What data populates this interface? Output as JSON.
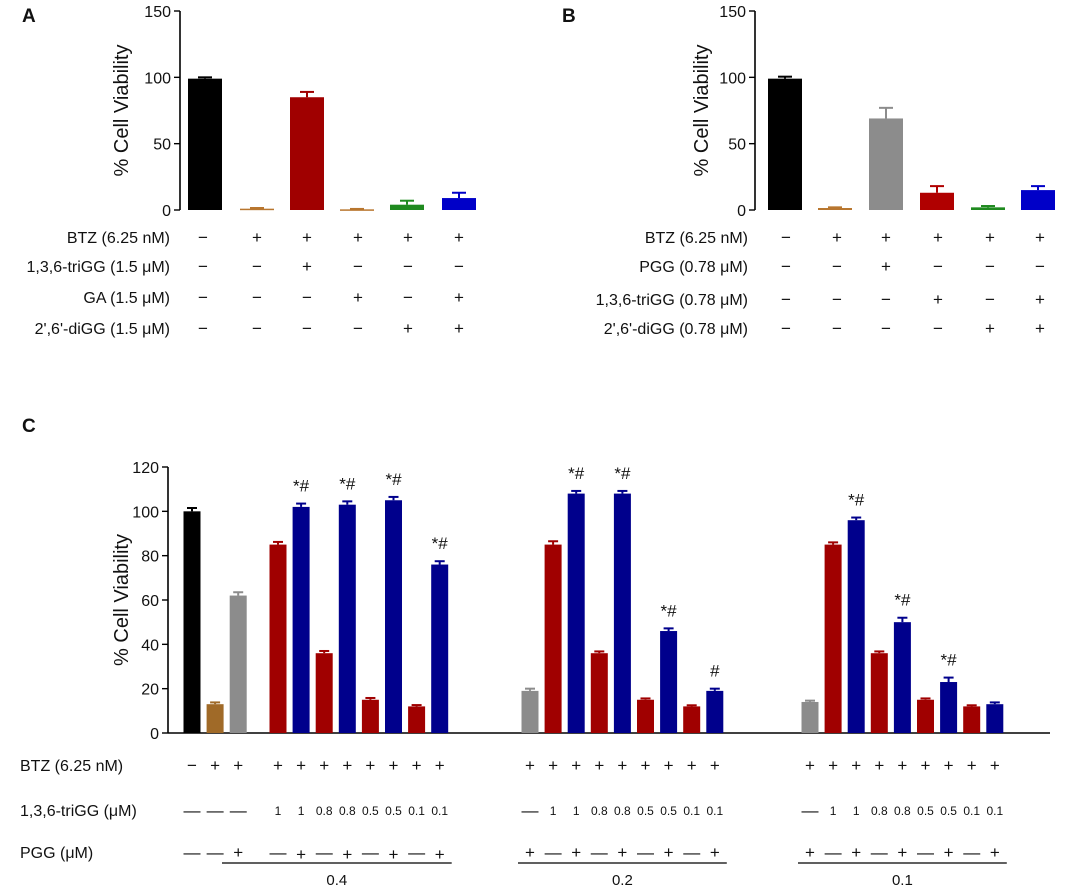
{
  "chart_data": [
    {
      "panel": "A",
      "type": "bar",
      "ylabel": "% Cell Viability",
      "ylim": [
        0,
        150
      ],
      "yticks": [
        0,
        50,
        100,
        150
      ],
      "values": [
        99,
        1,
        85,
        0.5,
        4,
        9
      ],
      "errors": [
        1,
        0.5,
        4,
        0.3,
        3,
        4
      ],
      "colors": [
        "#000000",
        "#b8762f",
        "#a00000",
        "#b8762f",
        "#1f8a1f",
        "#0000c8"
      ],
      "rows": [
        {
          "label": "BTZ (6.25 nM)",
          "cells": [
            "−",
            "+",
            "+",
            "+",
            "+",
            "+"
          ]
        },
        {
          "label": "1,3,6-triGG (1.5 μM)",
          "cells": [
            "−",
            "−",
            "+",
            "−",
            "−",
            "−"
          ]
        },
        {
          "label": "GA (1.5 μM)",
          "cells": [
            "−",
            "−",
            "−",
            "+",
            "−",
            "+"
          ]
        },
        {
          "label": "2',6'-diGG (1.5 μM)",
          "cells": [
            "−",
            "−",
            "−",
            "−",
            "+",
            "+"
          ]
        }
      ]
    },
    {
      "panel": "B",
      "type": "bar",
      "ylabel": "% Cell Viability",
      "ylim": [
        0,
        150
      ],
      "yticks": [
        0,
        50,
        100,
        150
      ],
      "values": [
        99,
        1.5,
        69,
        13,
        2,
        15
      ],
      "errors": [
        1.5,
        0.5,
        8,
        5,
        1,
        3
      ],
      "colors": [
        "#000000",
        "#b8762f",
        "#8c8c8c",
        "#b00000",
        "#1f8a1f",
        "#0000c8"
      ],
      "rows": [
        {
          "label": "BTZ (6.25 nM)",
          "cells": [
            "−",
            "+",
            "+",
            "+",
            "+",
            "+"
          ]
        },
        {
          "label": "PGG (0.78 μM)",
          "cells": [
            "−",
            "−",
            "+",
            "−",
            "−",
            "−"
          ]
        },
        {
          "label": "1,3,6-triGG (0.78 μM)",
          "cells": [
            "−",
            "−",
            "−",
            "+",
            "−",
            "+"
          ]
        },
        {
          "label": "2',6'-diGG (0.78 μM)",
          "cells": [
            "−",
            "−",
            "−",
            "−",
            "+",
            "+"
          ]
        }
      ]
    },
    {
      "panel": "C",
      "type": "bar",
      "ylabel": "% Cell Viability",
      "ylim": [
        0,
        120
      ],
      "yticks": [
        0,
        20,
        40,
        60,
        80,
        100,
        120
      ],
      "groups": [
        {
          "label": "",
          "bars": [
            {
              "value": 100,
              "error": 1.5,
              "color": "#000000",
              "sig": "",
              "btz": "−",
              "trigg": "—",
              "pgg": "—"
            },
            {
              "value": 13,
              "error": 0.8,
              "color": "#a06a28",
              "sig": "",
              "btz": "+",
              "trigg": "—",
              "pgg": "—"
            },
            {
              "value": 62,
              "error": 1.5,
              "color": "#8c8c8c",
              "sig": "",
              "btz": "+",
              "trigg": "—",
              "pgg": "+"
            }
          ]
        },
        {
          "label": "0.4",
          "bars": [
            {
              "value": 85,
              "error": 1.2,
              "color": "#a00000",
              "sig": "",
              "btz": "+",
              "trigg": "1",
              "pgg": "—"
            },
            {
              "value": 102,
              "error": 1.5,
              "color": "#00008c",
              "sig": "*#",
              "btz": "+",
              "trigg": "1",
              "pgg": "+"
            },
            {
              "value": 36,
              "error": 1,
              "color": "#a00000",
              "sig": "",
              "btz": "+",
              "trigg": "0.8",
              "pgg": "—"
            },
            {
              "value": 103,
              "error": 1.5,
              "color": "#00008c",
              "sig": "*#",
              "btz": "+",
              "trigg": "0.8",
              "pgg": "+"
            },
            {
              "value": 15,
              "error": 0.8,
              "color": "#a00000",
              "sig": "",
              "btz": "+",
              "trigg": "0.5",
              "pgg": "—"
            },
            {
              "value": 105,
              "error": 1.5,
              "color": "#00008c",
              "sig": "*#",
              "btz": "+",
              "trigg": "0.5",
              "pgg": "+"
            },
            {
              "value": 12,
              "error": 0.6,
              "color": "#a00000",
              "sig": "",
              "btz": "+",
              "trigg": "0.1",
              "pgg": "—"
            },
            {
              "value": 76,
              "error": 1.5,
              "color": "#00008c",
              "sig": "*#",
              "btz": "+",
              "trigg": "0.1",
              "pgg": "+"
            }
          ]
        },
        {
          "label": "0.2",
          "bars": [
            {
              "value": 19,
              "error": 1,
              "color": "#8c8c8c",
              "sig": "",
              "btz": "+",
              "trigg": "—",
              "pgg": "+"
            },
            {
              "value": 85,
              "error": 1.5,
              "color": "#a00000",
              "sig": "",
              "btz": "+",
              "trigg": "1",
              "pgg": "—"
            },
            {
              "value": 108,
              "error": 1.2,
              "color": "#00008c",
              "sig": "*#",
              "btz": "+",
              "trigg": "1",
              "pgg": "+"
            },
            {
              "value": 36,
              "error": 0.8,
              "color": "#a00000",
              "sig": "",
              "btz": "+",
              "trigg": "0.8",
              "pgg": "—"
            },
            {
              "value": 108,
              "error": 1.2,
              "color": "#00008c",
              "sig": "*#",
              "btz": "+",
              "trigg": "0.8",
              "pgg": "+"
            },
            {
              "value": 15,
              "error": 0.6,
              "color": "#a00000",
              "sig": "",
              "btz": "+",
              "trigg": "0.5",
              "pgg": "—"
            },
            {
              "value": 46,
              "error": 1.2,
              "color": "#00008c",
              "sig": "*#",
              "btz": "+",
              "trigg": "0.5",
              "pgg": "+"
            },
            {
              "value": 12,
              "error": 0.5,
              "color": "#a00000",
              "sig": "",
              "btz": "+",
              "trigg": "0.1",
              "pgg": "—"
            },
            {
              "value": 19,
              "error": 1,
              "color": "#00008c",
              "sig": "#",
              "btz": "+",
              "trigg": "0.1",
              "pgg": "+"
            }
          ]
        },
        {
          "label": "0.1",
          "bars": [
            {
              "value": 14,
              "error": 0.6,
              "color": "#8c8c8c",
              "sig": "",
              "btz": "+",
              "trigg": "—",
              "pgg": "+"
            },
            {
              "value": 85,
              "error": 1,
              "color": "#a00000",
              "sig": "",
              "btz": "+",
              "trigg": "1",
              "pgg": "—"
            },
            {
              "value": 96,
              "error": 1.2,
              "color": "#00008c",
              "sig": "*#",
              "btz": "+",
              "trigg": "1",
              "pgg": "+"
            },
            {
              "value": 36,
              "error": 0.8,
              "color": "#a00000",
              "sig": "",
              "btz": "+",
              "trigg": "0.8",
              "pgg": "—"
            },
            {
              "value": 50,
              "error": 2,
              "color": "#00008c",
              "sig": "*#",
              "btz": "+",
              "trigg": "0.8",
              "pgg": "+"
            },
            {
              "value": 15,
              "error": 0.6,
              "color": "#a00000",
              "sig": "",
              "btz": "+",
              "trigg": "0.5",
              "pgg": "—"
            },
            {
              "value": 23,
              "error": 2,
              "color": "#00008c",
              "sig": "*#",
              "btz": "+",
              "trigg": "0.5",
              "pgg": "+"
            },
            {
              "value": 12,
              "error": 0.5,
              "color": "#a00000",
              "sig": "",
              "btz": "+",
              "trigg": "0.1",
              "pgg": "—"
            },
            {
              "value": 13,
              "error": 0.8,
              "color": "#00008c",
              "sig": "",
              "btz": "+",
              "trigg": "0.1",
              "pgg": "+"
            }
          ]
        }
      ],
      "rows": [
        {
          "key": "btz",
          "label": "BTZ (6.25 nM)"
        },
        {
          "key": "trigg",
          "label": "1,3,6-triGG (μM)"
        },
        {
          "key": "pgg",
          "label": "PGG (μM)"
        }
      ]
    }
  ]
}
